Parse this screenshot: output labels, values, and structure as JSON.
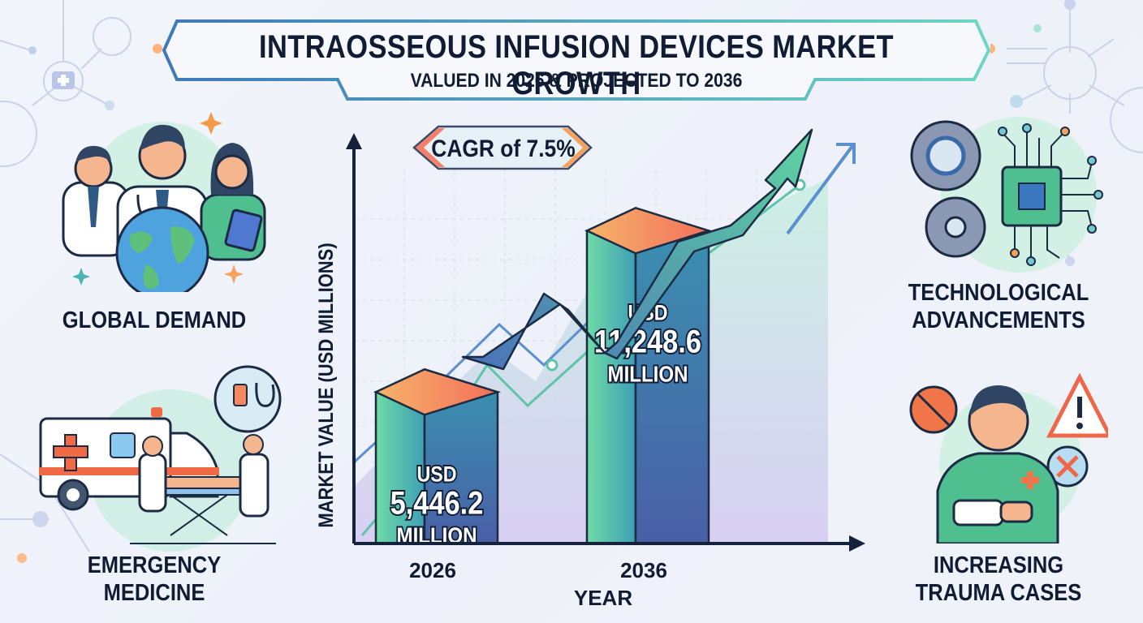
{
  "header": {
    "title": "INTRAOSSEOUS INFUSION DEVICES MARKET GROWTH",
    "subtitle": "VALUED IN 2026 & PROJECTED TO 2036"
  },
  "cagr_badge": {
    "label": "CAGR of 7.5%",
    "cagr_percent": 7.5
  },
  "panels": {
    "left_top": {
      "label": "GLOBAL DEMAND",
      "icon": "doctors-globe-icon"
    },
    "left_bottom": {
      "label_line1": "EMERGENCY",
      "label_line2": "MEDICINE",
      "icon": "ambulance-icon"
    },
    "right_top": {
      "label_line1": "TECHNOLOGICAL",
      "label_line2": "ADVANCEMENTS",
      "icon": "gears-chip-icon"
    },
    "right_bottom": {
      "label_line1": "INCREASING",
      "label_line2": "TRAUMA CASES",
      "icon": "injured-person-icon"
    }
  },
  "colors": {
    "text_dark": "#101c33",
    "bar_green": "#6fdba6",
    "bar_blue": "#3a6aa8",
    "bar_top_orange": "#f6875e",
    "arrow_teal": "#5fcfa0",
    "line_blue": "#5a8fd0",
    "accent_orange": "#f39a4a"
  },
  "chart_data": {
    "type": "bar",
    "title": "INTRAOSSEOUS INFUSION DEVICES MARKET GROWTH",
    "subtitle": "VALUED IN 2026 & PROJECTED TO 2036",
    "xlabel": "YEAR",
    "ylabel": "MARKET VALUE (USD MILLIONS)",
    "categories": [
      "2026",
      "2036"
    ],
    "values": [
      5446.2,
      11248.6
    ],
    "data_labels": [
      {
        "line1": "USD",
        "line2": "5,446.2",
        "line3": "MILLION"
      },
      {
        "line1": "USD",
        "line2": "11,248.6",
        "line3": "MILLION"
      }
    ],
    "annotation": "CAGR of 7.5%",
    "ylim": [
      0,
      14000
    ],
    "grid": true,
    "legend": "none"
  }
}
